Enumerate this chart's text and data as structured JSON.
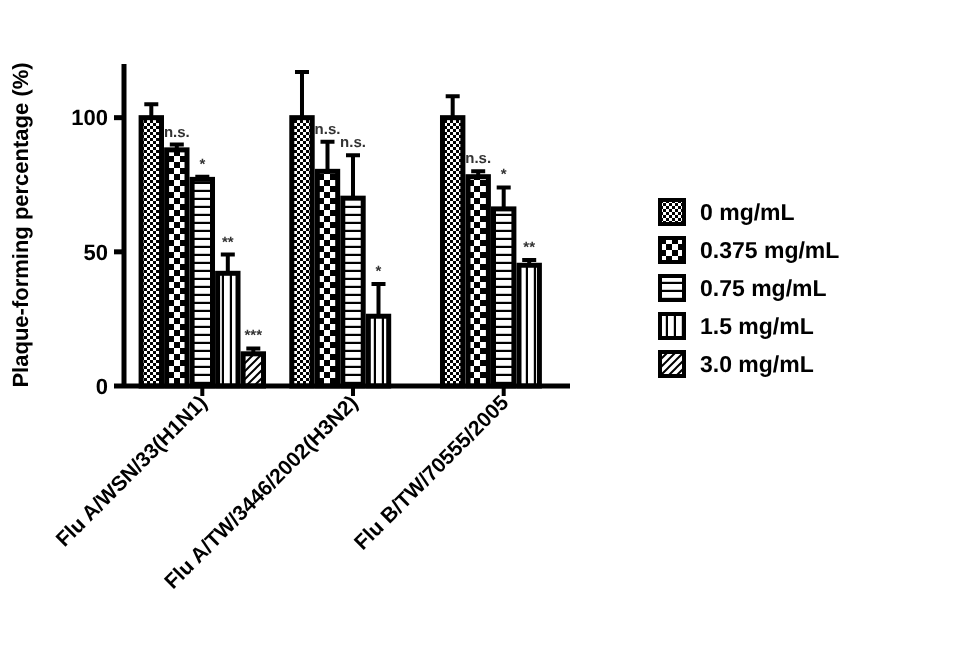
{
  "chart_data": {
    "type": "bar",
    "ylabel": "Plaque-forming percentage (%)",
    "categories": [
      "Flu A/WSN/33(H1N1)",
      "Flu A/TW/3446/2002(H3N2)",
      "Flu B/TW/70555/2005"
    ],
    "series": [
      {
        "name": "0 mg/mL",
        "color": "#000000",
        "values": [
          100,
          100,
          100
        ],
        "errors": [
          [
            100,
            105
          ],
          [
            100,
            117
          ],
          [
            100,
            108
          ]
        ]
      },
      {
        "name": "0.375 mg/mL",
        "color": "#000000",
        "values": [
          88,
          80,
          78
        ],
        "errors": [
          [
            88,
            90
          ],
          [
            80,
            91
          ],
          [
            78,
            80
          ]
        ]
      },
      {
        "name": "0.75 mg/mL",
        "color": "#000000",
        "values": [
          77,
          70,
          66
        ],
        "errors": [
          [
            77,
            78
          ],
          [
            70,
            86
          ],
          [
            66,
            74
          ]
        ]
      },
      {
        "name": "1.5 mg/mL",
        "color": "#000000",
        "values": [
          42,
          26,
          45
        ],
        "errors": [
          [
            42,
            49
          ],
          [
            26,
            38
          ],
          [
            45,
            47
          ]
        ]
      },
      {
        "name": "3.0 mg/mL",
        "color": "#000000",
        "values": [
          12,
          null,
          null
        ],
        "errors": [
          [
            12,
            14
          ],
          null,
          null
        ]
      }
    ],
    "ylim": [
      0,
      120
    ],
    "yticks": [
      0,
      50,
      100
    ],
    "grid": false,
    "legend": "right",
    "annotations": [
      "n.s.",
      "*",
      "**",
      "***",
      "n.s.",
      "n.s.",
      "*",
      "n.s.",
      "*",
      "**"
    ]
  }
}
